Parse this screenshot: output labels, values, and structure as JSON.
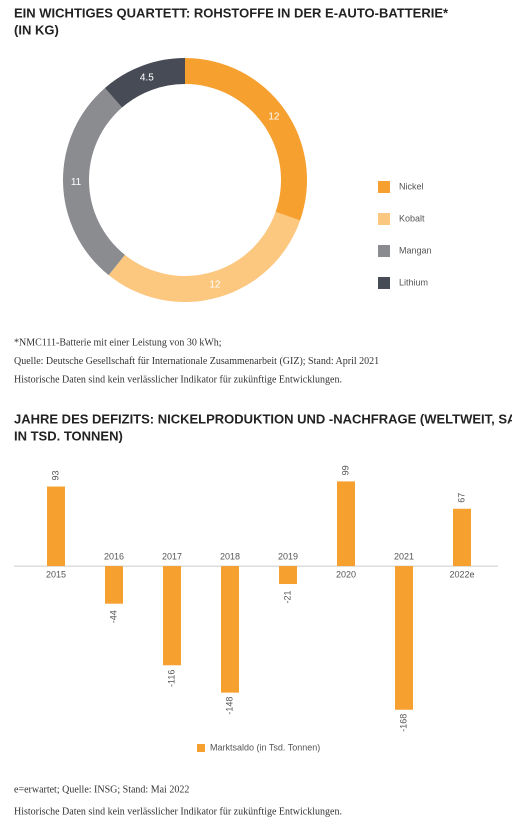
{
  "chart_data": [
    {
      "type": "pie",
      "title": "EIN WICHTIGES QUARTETT: ROHSTOFFE IN DER E-AUTO-BATTERIE*",
      "subtitle": "(IN KG)",
      "categories": [
        "Nickel",
        "Kobalt",
        "Mangan",
        "Lithium"
      ],
      "values": [
        12,
        12,
        11,
        4.5
      ],
      "colors": [
        "#f6a030",
        "#fcc77f",
        "#8b8c90",
        "#474b55"
      ],
      "notes": [
        "*NMC111-Batterie mit einer Leistung von 30 kWh;",
        "Quelle: Deutsche Gesellschaft für Internationale Zusammenarbeit (GIZ); Stand: April 2021",
        "Historische Daten sind kein verlässlicher Indikator für zukünftige Entwicklungen."
      ]
    },
    {
      "type": "bar",
      "title": "JAHRE DES DEFIZITS: NICKELPRODUKTION UND -NACHFRAGE (WELTWEIT, SALDO",
      "subtitle": "IN TSD. TONNEN)",
      "categories": [
        "2015",
        "2016",
        "2017",
        "2018",
        "2019",
        "2020",
        "2021",
        "2022e"
      ],
      "series": [
        {
          "name": "Marktsaldo (in Tsd. Tonnen)",
          "color": "#f6a030",
          "values": [
            93,
            -44,
            -116,
            -148,
            -21,
            99,
            -168,
            67
          ]
        }
      ],
      "ylim": [
        -180,
        110
      ],
      "notes": [
        "e=erwartet; Quelle: INSG; Stand: Mai 2022",
        "Historische Daten sind kein verlässlicher Indikator für zukünftige Entwicklungen."
      ]
    }
  ]
}
